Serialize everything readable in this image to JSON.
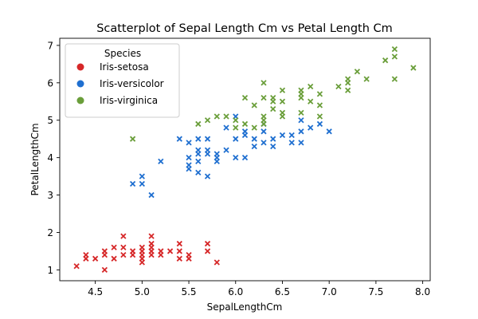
{
  "chart_data": {
    "type": "scatter",
    "title": "Scatterplot of Sepal Length Cm vs Petal Length Cm",
    "xlabel": "SepalLengthCm",
    "ylabel": "PetalLengthCm",
    "xlim": [
      4.12,
      8.08
    ],
    "ylim": [
      0.71,
      7.19
    ],
    "xticks": [
      "4.5",
      "5.0",
      "5.5",
      "6.0",
      "6.5",
      "7.0",
      "7.5",
      "8.0"
    ],
    "yticks": [
      "1",
      "2",
      "3",
      "4",
      "5",
      "6",
      "7"
    ],
    "grid": false,
    "legend": {
      "title": "Species",
      "position": "top-left"
    },
    "series": [
      {
        "name": "Iris-setosa",
        "color": "#d62728",
        "marker": "x",
        "points": [
          [
            4.3,
            1.1
          ],
          [
            4.4,
            1.3
          ],
          [
            4.4,
            1.4
          ],
          [
            4.5,
            1.3
          ],
          [
            4.6,
            1.0
          ],
          [
            4.6,
            1.4
          ],
          [
            4.6,
            1.5
          ],
          [
            4.7,
            1.3
          ],
          [
            4.7,
            1.6
          ],
          [
            4.8,
            1.4
          ],
          [
            4.8,
            1.6
          ],
          [
            4.8,
            1.9
          ],
          [
            4.9,
            1.4
          ],
          [
            4.9,
            1.5
          ],
          [
            5.0,
            1.2
          ],
          [
            5.0,
            1.3
          ],
          [
            5.0,
            1.4
          ],
          [
            5.0,
            1.5
          ],
          [
            5.0,
            1.6
          ],
          [
            5.1,
            1.4
          ],
          [
            5.1,
            1.5
          ],
          [
            5.1,
            1.7
          ],
          [
            5.1,
            1.9
          ],
          [
            5.1,
            1.6
          ],
          [
            5.2,
            1.4
          ],
          [
            5.2,
            1.5
          ],
          [
            5.3,
            1.5
          ],
          [
            5.4,
            1.3
          ],
          [
            5.4,
            1.5
          ],
          [
            5.4,
            1.7
          ],
          [
            5.5,
            1.3
          ],
          [
            5.5,
            1.4
          ],
          [
            5.7,
            1.5
          ],
          [
            5.7,
            1.7
          ],
          [
            5.8,
            1.2
          ]
        ]
      },
      {
        "name": "Iris-versicolor",
        "color": "#1f6fd0",
        "marker": "x",
        "points": [
          [
            4.9,
            3.3
          ],
          [
            5.0,
            3.3
          ],
          [
            5.0,
            3.5
          ],
          [
            5.1,
            3.0
          ],
          [
            5.2,
            3.9
          ],
          [
            5.4,
            4.5
          ],
          [
            5.5,
            3.7
          ],
          [
            5.5,
            3.8
          ],
          [
            5.5,
            4.0
          ],
          [
            5.5,
            4.4
          ],
          [
            5.6,
            3.6
          ],
          [
            5.6,
            3.9
          ],
          [
            5.6,
            4.1
          ],
          [
            5.6,
            4.2
          ],
          [
            5.6,
            4.5
          ],
          [
            5.7,
            3.5
          ],
          [
            5.7,
            4.1
          ],
          [
            5.7,
            4.2
          ],
          [
            5.7,
            4.5
          ],
          [
            5.8,
            3.9
          ],
          [
            5.8,
            4.0
          ],
          [
            5.8,
            4.1
          ],
          [
            5.9,
            4.2
          ],
          [
            5.9,
            4.8
          ],
          [
            6.0,
            4.0
          ],
          [
            6.0,
            4.5
          ],
          [
            6.0,
            5.1
          ],
          [
            6.1,
            4.0
          ],
          [
            6.1,
            4.6
          ],
          [
            6.1,
            4.7
          ],
          [
            6.2,
            4.3
          ],
          [
            6.2,
            4.5
          ],
          [
            6.3,
            4.4
          ],
          [
            6.3,
            4.7
          ],
          [
            6.3,
            4.9
          ],
          [
            6.4,
            4.3
          ],
          [
            6.4,
            4.5
          ],
          [
            6.5,
            4.6
          ],
          [
            6.6,
            4.4
          ],
          [
            6.6,
            4.6
          ],
          [
            6.7,
            4.4
          ],
          [
            6.7,
            4.7
          ],
          [
            6.7,
            5.0
          ],
          [
            6.8,
            4.8
          ],
          [
            6.9,
            4.9
          ],
          [
            7.0,
            4.7
          ]
        ]
      },
      {
        "name": "Iris-virginica",
        "color": "#6a9e3a",
        "marker": "x",
        "points": [
          [
            4.9,
            4.5
          ],
          [
            5.6,
            4.9
          ],
          [
            5.7,
            5.0
          ],
          [
            5.8,
            5.1
          ],
          [
            5.9,
            5.1
          ],
          [
            6.0,
            4.8
          ],
          [
            6.0,
            5.0
          ],
          [
            6.1,
            4.9
          ],
          [
            6.1,
            5.6
          ],
          [
            6.2,
            4.8
          ],
          [
            6.2,
            5.4
          ],
          [
            6.3,
            4.9
          ],
          [
            6.3,
            5.0
          ],
          [
            6.3,
            5.1
          ],
          [
            6.3,
            5.6
          ],
          [
            6.3,
            6.0
          ],
          [
            6.4,
            5.3
          ],
          [
            6.4,
            5.5
          ],
          [
            6.4,
            5.6
          ],
          [
            6.5,
            5.1
          ],
          [
            6.5,
            5.2
          ],
          [
            6.5,
            5.5
          ],
          [
            6.5,
            5.8
          ],
          [
            6.7,
            5.2
          ],
          [
            6.7,
            5.6
          ],
          [
            6.7,
            5.7
          ],
          [
            6.7,
            5.8
          ],
          [
            6.8,
            5.5
          ],
          [
            6.8,
            5.9
          ],
          [
            6.9,
            5.1
          ],
          [
            6.9,
            5.4
          ],
          [
            6.9,
            5.7
          ],
          [
            7.1,
            5.9
          ],
          [
            7.2,
            5.8
          ],
          [
            7.2,
            6.0
          ],
          [
            7.2,
            6.1
          ],
          [
            7.3,
            6.3
          ],
          [
            7.4,
            6.1
          ],
          [
            7.6,
            6.6
          ],
          [
            7.7,
            6.1
          ],
          [
            7.7,
            6.7
          ],
          [
            7.7,
            6.9
          ],
          [
            7.9,
            6.4
          ]
        ]
      }
    ]
  }
}
